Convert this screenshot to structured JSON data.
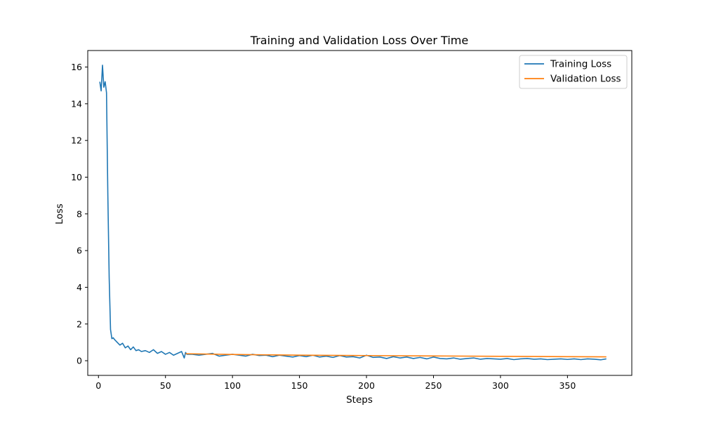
{
  "chart_data": {
    "type": "line",
    "title": "Training and Validation Loss Over Time",
    "xlabel": "Steps",
    "ylabel": "Loss",
    "xlim": [
      -8,
      398
    ],
    "ylim": [
      -0.8,
      16.9
    ],
    "xticks": [
      0,
      50,
      100,
      150,
      200,
      250,
      300,
      350
    ],
    "xtick_labels": [
      "0",
      "50",
      "100",
      "150",
      "200",
      "250",
      "300",
      "350"
    ],
    "yticks": [
      0,
      2,
      4,
      6,
      8,
      10,
      12,
      14,
      16
    ],
    "ytick_labels": [
      "0",
      "2",
      "4",
      "6",
      "8",
      "10",
      "12",
      "14",
      "16"
    ],
    "grid": false,
    "legend_position": "upper right",
    "series": [
      {
        "name": "Training Loss",
        "color": "#1f77b4",
        "x": [
          1,
          2,
          3,
          4,
          5,
          6,
          7,
          8,
          9,
          10,
          11,
          12,
          14,
          16,
          18,
          20,
          22,
          24,
          26,
          28,
          30,
          32,
          35,
          38,
          41,
          44,
          47,
          50,
          53,
          56,
          59,
          62,
          64,
          65,
          66,
          70,
          75,
          80,
          85,
          90,
          95,
          100,
          105,
          110,
          115,
          120,
          125,
          130,
          135,
          140,
          145,
          150,
          155,
          160,
          165,
          170,
          175,
          180,
          185,
          190,
          195,
          200,
          205,
          210,
          215,
          220,
          225,
          230,
          235,
          240,
          245,
          250,
          255,
          260,
          265,
          270,
          275,
          280,
          285,
          290,
          295,
          300,
          305,
          310,
          315,
          320,
          325,
          330,
          335,
          340,
          345,
          350,
          355,
          360,
          365,
          370,
          375,
          379
        ],
        "y": [
          15.2,
          14.7,
          16.1,
          14.9,
          15.2,
          14.6,
          9.0,
          4.5,
          1.7,
          1.2,
          1.25,
          1.15,
          1.0,
          0.85,
          0.95,
          0.7,
          0.8,
          0.6,
          0.75,
          0.55,
          0.6,
          0.5,
          0.55,
          0.45,
          0.6,
          0.4,
          0.5,
          0.35,
          0.45,
          0.3,
          0.4,
          0.5,
          0.15,
          0.45,
          0.35,
          0.35,
          0.3,
          0.35,
          0.4,
          0.25,
          0.3,
          0.35,
          0.3,
          0.25,
          0.35,
          0.28,
          0.3,
          0.22,
          0.3,
          0.25,
          0.2,
          0.28,
          0.22,
          0.3,
          0.2,
          0.25,
          0.18,
          0.28,
          0.2,
          0.22,
          0.15,
          0.3,
          0.18,
          0.2,
          0.12,
          0.22,
          0.15,
          0.2,
          0.12,
          0.18,
          0.1,
          0.2,
          0.12,
          0.1,
          0.15,
          0.08,
          0.12,
          0.15,
          0.08,
          0.12,
          0.1,
          0.08,
          0.12,
          0.06,
          0.1,
          0.12,
          0.08,
          0.1,
          0.06,
          0.08,
          0.1,
          0.07,
          0.1,
          0.06,
          0.1,
          0.08,
          0.05,
          0.1
        ]
      },
      {
        "name": "Validation Loss",
        "color": "#ff7f0e",
        "x": [
          65,
          100,
          150,
          200,
          250,
          300,
          350,
          379
        ],
        "y": [
          0.38,
          0.34,
          0.3,
          0.28,
          0.26,
          0.24,
          0.22,
          0.21
        ]
      }
    ]
  }
}
